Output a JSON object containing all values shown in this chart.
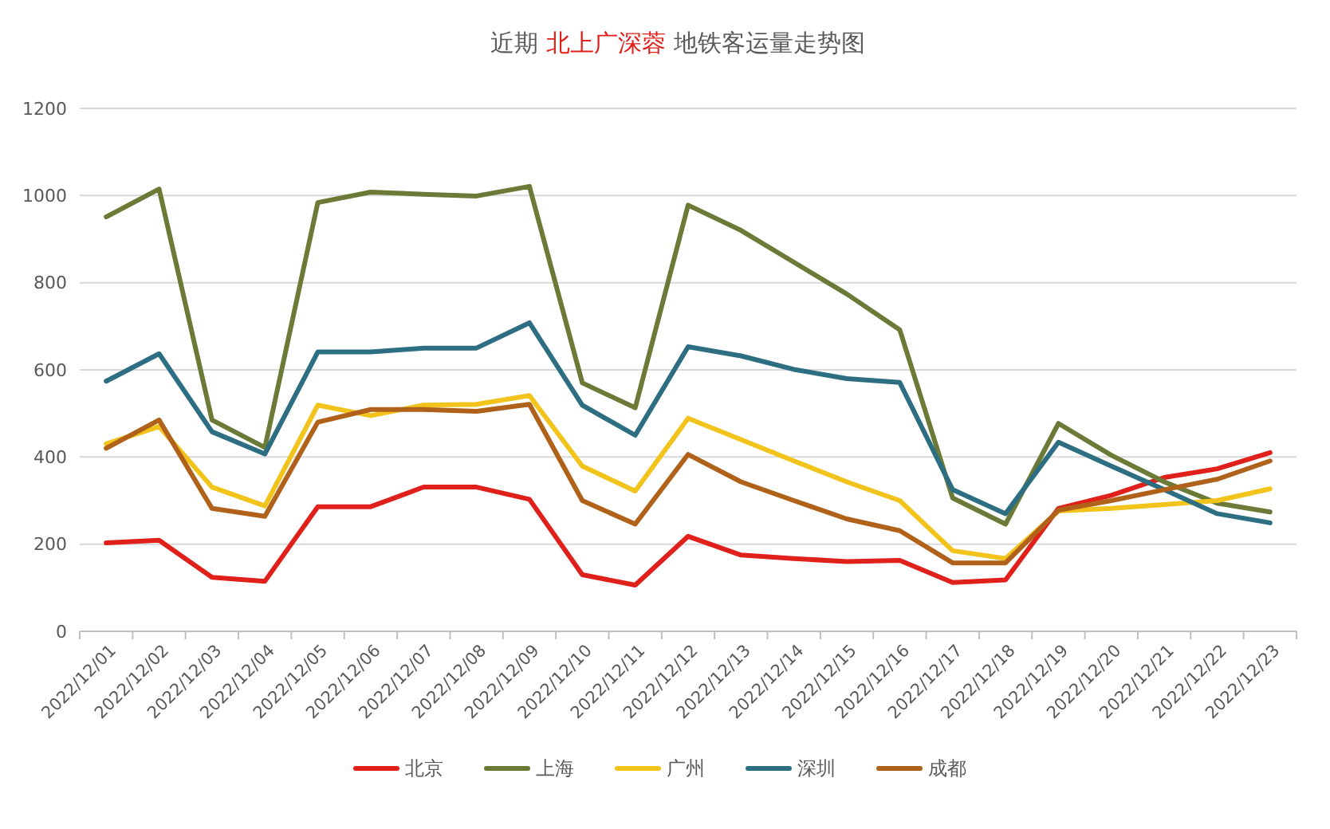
{
  "chart_data": {
    "type": "line",
    "title": "近期 北上广深蓉 地铁客运量走势图",
    "categories": [
      "2022/12/01",
      "2022/12/02",
      "2022/12/03",
      "2022/12/04",
      "2022/12/05",
      "2022/12/06",
      "2022/12/07",
      "2022/12/08",
      "2022/12/09",
      "2022/12/10",
      "2022/12/11",
      "2022/12/12",
      "2022/12/13",
      "2022/12/14",
      "2022/12/15",
      "2022/12/16",
      "2022/12/17",
      "2022/12/18",
      "2022/12/19",
      "2022/12/20",
      "2022/12/21",
      "2022/12/22",
      "2022/12/23"
    ],
    "series": [
      {
        "name": "北京",
        "color": "#e0201b",
        "values": [
          203,
          209,
          124,
          115,
          286,
          286,
          331,
          331,
          303,
          130,
          106,
          218,
          175,
          167,
          160,
          163,
          112,
          118,
          282,
          312,
          353,
          373,
          410
        ]
      },
      {
        "name": "上海",
        "color": "#6b7a36",
        "values": [
          951,
          1015,
          485,
          422,
          984,
          1008,
          1003,
          999,
          1021,
          570,
          513,
          978,
          920,
          847,
          774,
          692,
          306,
          246,
          477,
          404,
          343,
          294,
          274
        ]
      },
      {
        "name": "广州",
        "color": "#f2c31a",
        "values": [
          430,
          470,
          331,
          288,
          519,
          495,
          519,
          521,
          541,
          379,
          322,
          489,
          440,
          391,
          343,
          300,
          185,
          167,
          276,
          282,
          291,
          300,
          327
        ]
      },
      {
        "name": "深圳",
        "color": "#2e6e82",
        "values": [
          574,
          637,
          458,
          407,
          641,
          641,
          650,
          650,
          708,
          519,
          450,
          653,
          632,
          601,
          580,
          571,
          325,
          270,
          434,
          379,
          325,
          270,
          249
        ]
      },
      {
        "name": "成都",
        "color": "#b0621a",
        "values": [
          420,
          485,
          282,
          264,
          480,
          509,
          509,
          505,
          521,
          300,
          246,
          406,
          343,
          300,
          258,
          231,
          157,
          157,
          278,
          300,
          325,
          349,
          391
        ]
      }
    ],
    "ylim": [
      0,
      1200
    ],
    "yticks": [
      0,
      200,
      400,
      600,
      800,
      1000,
      1200
    ],
    "grid": "y",
    "legend": "bottom",
    "marker": "none",
    "line_style": "solid"
  }
}
